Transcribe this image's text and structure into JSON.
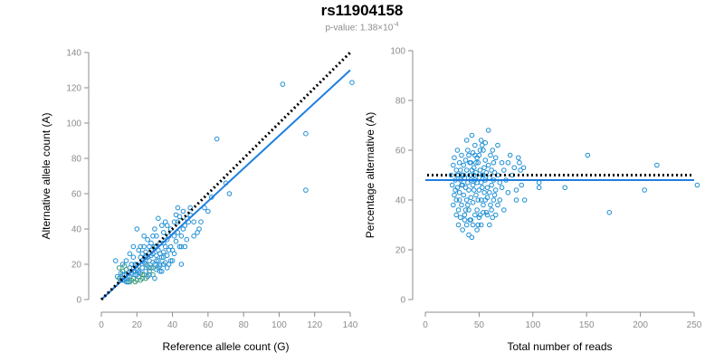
{
  "header": {
    "title": "rs11904158",
    "pvalue_prefix": "p-value: 1.38×10",
    "pvalue_exp": "-4"
  },
  "colors": {
    "points": "#1f8fd4",
    "points_alt": "#3a9a7a",
    "fit": "#1f7fe0",
    "reference": "#000000",
    "axis": "#8c8c8c"
  },
  "chart_data": [
    {
      "type": "scatter",
      "xlabel": "Reference allele count (G)",
      "ylabel": "Alternative allele count (A)",
      "xlim": [
        0,
        140
      ],
      "ylim": [
        0,
        140
      ],
      "xticks": [
        "0",
        "20",
        "40",
        "60",
        "80",
        "100",
        "120",
        "140"
      ],
      "yticks": [
        "0",
        "20",
        "40",
        "60",
        "80",
        "100",
        "120",
        "140"
      ],
      "reference_line": {
        "style": "dotted",
        "from": [
          0,
          0
        ],
        "to": [
          140,
          140
        ]
      },
      "fit_line": {
        "from": [
          0,
          0
        ],
        "to": [
          140,
          130
        ]
      },
      "points": [
        [
          10,
          12
        ],
        [
          11,
          15
        ],
        [
          12,
          11
        ],
        [
          12,
          16
        ],
        [
          13,
          14
        ],
        [
          13,
          11
        ],
        [
          14,
          17
        ],
        [
          14,
          12
        ],
        [
          15,
          15
        ],
        [
          15,
          10
        ],
        [
          16,
          13
        ],
        [
          16,
          18
        ],
        [
          17,
          11
        ],
        [
          17,
          15
        ],
        [
          18,
          16
        ],
        [
          18,
          12
        ],
        [
          19,
          14
        ],
        [
          19,
          20
        ],
        [
          20,
          11
        ],
        [
          20,
          17
        ],
        [
          21,
          13
        ],
        [
          21,
          19
        ],
        [
          22,
          15
        ],
        [
          22,
          24
        ],
        [
          23,
          12
        ],
        [
          23,
          18
        ],
        [
          24,
          21
        ],
        [
          24,
          14
        ],
        [
          25,
          16
        ],
        [
          25,
          27
        ],
        [
          26,
          19
        ],
        [
          26,
          13
        ],
        [
          27,
          22
        ],
        [
          27,
          16
        ],
        [
          28,
          25
        ],
        [
          28,
          18
        ],
        [
          29,
          14
        ],
        [
          29,
          21
        ],
        [
          30,
          20
        ],
        [
          30,
          30
        ],
        [
          31,
          17
        ],
        [
          31,
          25
        ],
        [
          32,
          22
        ],
        [
          32,
          28
        ],
        [
          33,
          19
        ],
        [
          33,
          32
        ],
        [
          34,
          24
        ],
        [
          34,
          16
        ],
        [
          35,
          27
        ],
        [
          35,
          38
        ],
        [
          36,
          21
        ],
        [
          36,
          30
        ],
        [
          37,
          34
        ],
        [
          37,
          25
        ],
        [
          38,
          36
        ],
        [
          38,
          20
        ],
        [
          39,
          40
        ],
        [
          40,
          28
        ],
        [
          41,
          44
        ],
        [
          42,
          33
        ],
        [
          43,
          38
        ],
        [
          44,
          47
        ],
        [
          45,
          30
        ],
        [
          46,
          50
        ],
        [
          47,
          42
        ],
        [
          48,
          46
        ],
        [
          50,
          52
        ],
        [
          52,
          36
        ],
        [
          55,
          40
        ],
        [
          58,
          52
        ],
        [
          60,
          50
        ],
        [
          62,
          58
        ],
        [
          65,
          91
        ],
        [
          70,
          66
        ],
        [
          72,
          60
        ],
        [
          102,
          122
        ],
        [
          115,
          94
        ],
        [
          115,
          62
        ],
        [
          141,
          123
        ],
        [
          8,
          22
        ],
        [
          9,
          13
        ],
        [
          10,
          18
        ],
        [
          11,
          11
        ],
        [
          12,
          14
        ],
        [
          13,
          19
        ],
        [
          14,
          10
        ],
        [
          15,
          13
        ],
        [
          16,
          10
        ],
        [
          17,
          20
        ],
        [
          18,
          24
        ],
        [
          19,
          10
        ],
        [
          20,
          14
        ],
        [
          21,
          28
        ],
        [
          22,
          11
        ],
        [
          23,
          22
        ],
        [
          24,
          30
        ],
        [
          25,
          12
        ],
        [
          26,
          24
        ],
        [
          27,
          18
        ],
        [
          28,
          32
        ],
        [
          29,
          26
        ],
        [
          30,
          12
        ],
        [
          31,
          36
        ],
        [
          32,
          18
        ],
        [
          33,
          26
        ],
        [
          34,
          42
        ],
        [
          35,
          20
        ],
        [
          36,
          44
        ],
        [
          38,
          28
        ],
        [
          40,
          22
        ],
        [
          41,
          36
        ],
        [
          42,
          48
        ],
        [
          44,
          30
        ],
        [
          45,
          20
        ],
        [
          46,
          40
        ],
        [
          48,
          34
        ],
        [
          50,
          48
        ],
        [
          52,
          44
        ],
        [
          43,
          52
        ],
        [
          20,
          40
        ],
        [
          22,
          30
        ],
        [
          24,
          36
        ],
        [
          26,
          34
        ],
        [
          28,
          28
        ],
        [
          30,
          40
        ],
        [
          32,
          46
        ],
        [
          18,
          30
        ],
        [
          16,
          26
        ],
        [
          14,
          22
        ],
        [
          12,
          20
        ],
        [
          15,
          10
        ],
        [
          20,
          20
        ],
        [
          23,
          26
        ],
        [
          25,
          20
        ],
        [
          27,
          30
        ],
        [
          29,
          36
        ],
        [
          31,
          30
        ],
        [
          33,
          20
        ],
        [
          35,
          32
        ],
        [
          37,
          42
        ],
        [
          39,
          30
        ],
        [
          41,
          26
        ],
        [
          43,
          44
        ],
        [
          45,
          36
        ],
        [
          47,
          30
        ],
        [
          49,
          44
        ],
        [
          54,
          38
        ],
        [
          56,
          44
        ],
        [
          19,
          16
        ],
        [
          21,
          16
        ],
        [
          23,
          14
        ],
        [
          25,
          24
        ],
        [
          27,
          14
        ],
        [
          29,
          18
        ],
        [
          31,
          22
        ],
        [
          33,
          16
        ],
        [
          35,
          24
        ],
        [
          37,
          18
        ],
        [
          39,
          22
        ]
      ]
    },
    {
      "type": "scatter",
      "xlabel": "Total number of reads",
      "ylabel": "Percentage alternative (A)",
      "xlim": [
        0,
        260
      ],
      "ylim": [
        0,
        100
      ],
      "xticks": [
        "0",
        "50",
        "100",
        "150",
        "200",
        "250"
      ],
      "yticks": [
        "0",
        "20",
        "40",
        "60",
        "80",
        "100"
      ],
      "reference_line": {
        "style": "dotted",
        "y": 50
      },
      "fit_line": {
        "y": 48
      },
      "points": [
        [
          25,
          50
        ],
        [
          26,
          46
        ],
        [
          27,
          54
        ],
        [
          28,
          42
        ],
        [
          28,
          57
        ],
        [
          29,
          48
        ],
        [
          30,
          52
        ],
        [
          30,
          40
        ],
        [
          31,
          45
        ],
        [
          31,
          60
        ],
        [
          32,
          50
        ],
        [
          32,
          36
        ],
        [
          33,
          55
        ],
        [
          33,
          43
        ],
        [
          34,
          48
        ],
        [
          34,
          52
        ],
        [
          35,
          38
        ],
        [
          35,
          58
        ],
        [
          36,
          46
        ],
        [
          36,
          50
        ],
        [
          37,
          42
        ],
        [
          37,
          54
        ],
        [
          38,
          34
        ],
        [
          38,
          49
        ],
        [
          39,
          56
        ],
        [
          39,
          45
        ],
        [
          40,
          40
        ],
        [
          40,
          52
        ],
        [
          41,
          47
        ],
        [
          41,
          60
        ],
        [
          42,
          44
        ],
        [
          42,
          36
        ],
        [
          43,
          50
        ],
        [
          43,
          55
        ],
        [
          44,
          41
        ],
        [
          44,
          48
        ],
        [
          45,
          66
        ],
        [
          45,
          52
        ],
        [
          46,
          39
        ],
        [
          46,
          46
        ],
        [
          47,
          53
        ],
        [
          47,
          44
        ],
        [
          48,
          58
        ],
        [
          48,
          48
        ],
        [
          49,
          42
        ],
        [
          49,
          51
        ],
        [
          50,
          36
        ],
        [
          50,
          47
        ],
        [
          51,
          55
        ],
        [
          51,
          30
        ],
        [
          52,
          49
        ],
        [
          52,
          44
        ],
        [
          53,
          60
        ],
        [
          53,
          52
        ],
        [
          54,
          40
        ],
        [
          54,
          47
        ],
        [
          55,
          62
        ],
        [
          55,
          45
        ],
        [
          56,
          50
        ],
        [
          56,
          38
        ],
        [
          57,
          53
        ],
        [
          57,
          43
        ],
        [
          58,
          48
        ],
        [
          58,
          56
        ],
        [
          59,
          35
        ],
        [
          59,
          51
        ],
        [
          60,
          45
        ],
        [
          60,
          41
        ],
        [
          61,
          54
        ],
        [
          61,
          68
        ],
        [
          62,
          49
        ],
        [
          62,
          43
        ],
        [
          63,
          58
        ],
        [
          63,
          38
        ],
        [
          64,
          52
        ],
        [
          64,
          46
        ],
        [
          65,
          60
        ],
        [
          65,
          33
        ],
        [
          66,
          48
        ],
        [
          66,
          55
        ],
        [
          67,
          42
        ],
        [
          67,
          51
        ],
        [
          68,
          57
        ],
        [
          68,
          44
        ],
        [
          70,
          50
        ],
        [
          70,
          62
        ],
        [
          72,
          47
        ],
        [
          72,
          40
        ],
        [
          74,
          55
        ],
        [
          74,
          45
        ],
        [
          76,
          52
        ],
        [
          76,
          36
        ],
        [
          78,
          48
        ],
        [
          80,
          55
        ],
        [
          80,
          43
        ],
        [
          82,
          58
        ],
        [
          84,
          50
        ],
        [
          86,
          53
        ],
        [
          88,
          44
        ],
        [
          88,
          40
        ],
        [
          90,
          57
        ],
        [
          91,
          55
        ],
        [
          92,
          52
        ],
        [
          93,
          46
        ],
        [
          95,
          53
        ],
        [
          96,
          40
        ],
        [
          110,
          47
        ],
        [
          110,
          45
        ],
        [
          135,
          45
        ],
        [
          157,
          58
        ],
        [
          178,
          35
        ],
        [
          212,
          44
        ],
        [
          224,
          54
        ],
        [
          263,
          46
        ],
        [
          30,
          34
        ],
        [
          32,
          30
        ],
        [
          34,
          33
        ],
        [
          36,
          28
        ],
        [
          38,
          32
        ],
        [
          40,
          30
        ],
        [
          42,
          26
        ],
        [
          44,
          32
        ],
        [
          46,
          30
        ],
        [
          48,
          34
        ],
        [
          50,
          28
        ],
        [
          52,
          33
        ],
        [
          54,
          30
        ],
        [
          56,
          35
        ],
        [
          58,
          40
        ],
        [
          60,
          34
        ],
        [
          62,
          30
        ],
        [
          64,
          36
        ],
        [
          66,
          40
        ],
        [
          68,
          34
        ],
        [
          70,
          38
        ],
        [
          40,
          64
        ],
        [
          42,
          58
        ],
        [
          44,
          55
        ],
        [
          46,
          59
        ],
        [
          48,
          62
        ],
        [
          50,
          57
        ],
        [
          52,
          58
        ],
        [
          54,
          64
        ],
        [
          56,
          60
        ],
        [
          58,
          63
        ],
        [
          27,
          38
        ],
        [
          29,
          44
        ],
        [
          31,
          50
        ],
        [
          33,
          40
        ],
        [
          35,
          46
        ],
        [
          37,
          50
        ],
        [
          39,
          36
        ],
        [
          41,
          38
        ],
        [
          43,
          32
        ],
        [
          45,
          25
        ],
        [
          47,
          50
        ],
        [
          49,
          55
        ],
        [
          51,
          40
        ],
        [
          53,
          34
        ],
        [
          55,
          50
        ]
      ]
    }
  ]
}
